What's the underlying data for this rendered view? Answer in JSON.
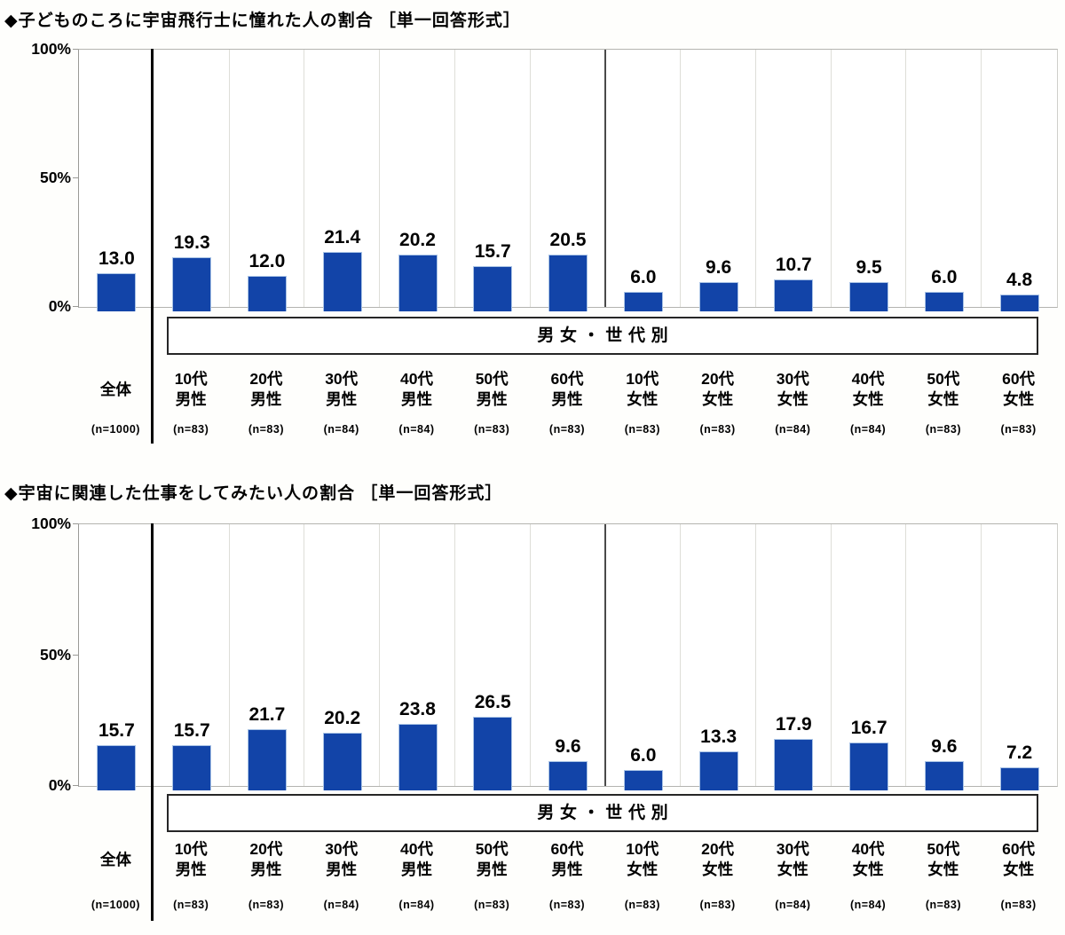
{
  "colors": {
    "bar": "#1244a8",
    "bar_border": "#a9c3e5",
    "divider_black": "#000000",
    "divider_dark": "#4a4a4a"
  },
  "chart_data": [
    {
      "type": "bar",
      "title": "◆子どものころに宇宙飛行士に憧れた人の割合 ［単一回答形式］",
      "group_box_label": "男女・世代別",
      "xlabel": "",
      "ylabel": "",
      "ylim": [
        0,
        100
      ],
      "y_tick_labels": [
        "100%",
        "50%",
        "0%"
      ],
      "grid": "vertical-column-separators",
      "legend": "none",
      "categories": [
        "全体",
        "10代男性",
        "20代男性",
        "30代男性",
        "40代男性",
        "50代男性",
        "60代男性",
        "10代女性",
        "20代女性",
        "30代女性",
        "40代女性",
        "50代女性",
        "60代女性"
      ],
      "category_lines": [
        [
          "全体"
        ],
        [
          "10代",
          "男性"
        ],
        [
          "20代",
          "男性"
        ],
        [
          "30代",
          "男性"
        ],
        [
          "40代",
          "男性"
        ],
        [
          "50代",
          "男性"
        ],
        [
          "60代",
          "男性"
        ],
        [
          "10代",
          "女性"
        ],
        [
          "20代",
          "女性"
        ],
        [
          "30代",
          "女性"
        ],
        [
          "40代",
          "女性"
        ],
        [
          "50代",
          "女性"
        ],
        [
          "60代",
          "女性"
        ]
      ],
      "n_labels": [
        "(n=1000)",
        "(n=83)",
        "(n=83)",
        "(n=84)",
        "(n=84)",
        "(n=83)",
        "(n=83)",
        "(n=83)",
        "(n=83)",
        "(n=84)",
        "(n=84)",
        "(n=83)",
        "(n=83)"
      ],
      "values": [
        13.0,
        19.3,
        12.0,
        21.4,
        20.2,
        15.7,
        20.5,
        6.0,
        9.6,
        10.7,
        9.5,
        6.0,
        4.8
      ],
      "value_labels": [
        "13.0",
        "19.3",
        "12.0",
        "21.4",
        "20.2",
        "15.7",
        "20.5",
        "6.0",
        "9.6",
        "10.7",
        "9.5",
        "6.0",
        "4.8"
      ]
    },
    {
      "type": "bar",
      "title": "◆宇宙に関連した仕事をしてみたい人の割合 ［単一回答形式］",
      "group_box_label": "男女・世代別",
      "xlabel": "",
      "ylabel": "",
      "ylim": [
        0,
        100
      ],
      "y_tick_labels": [
        "100%",
        "50%",
        "0%"
      ],
      "grid": "vertical-column-separators",
      "legend": "none",
      "categories": [
        "全体",
        "10代男性",
        "20代男性",
        "30代男性",
        "40代男性",
        "50代男性",
        "60代男性",
        "10代女性",
        "20代女性",
        "30代女性",
        "40代女性",
        "50代女性",
        "60代女性"
      ],
      "category_lines": [
        [
          "全体"
        ],
        [
          "10代",
          "男性"
        ],
        [
          "20代",
          "男性"
        ],
        [
          "30代",
          "男性"
        ],
        [
          "40代",
          "男性"
        ],
        [
          "50代",
          "男性"
        ],
        [
          "60代",
          "男性"
        ],
        [
          "10代",
          "女性"
        ],
        [
          "20代",
          "女性"
        ],
        [
          "30代",
          "女性"
        ],
        [
          "40代",
          "女性"
        ],
        [
          "50代",
          "女性"
        ],
        [
          "60代",
          "女性"
        ]
      ],
      "n_labels": [
        "(n=1000)",
        "(n=83)",
        "(n=83)",
        "(n=84)",
        "(n=84)",
        "(n=83)",
        "(n=83)",
        "(n=83)",
        "(n=83)",
        "(n=84)",
        "(n=84)",
        "(n=83)",
        "(n=83)"
      ],
      "values": [
        15.7,
        15.7,
        21.7,
        20.2,
        23.8,
        26.5,
        9.6,
        6.0,
        13.3,
        17.9,
        16.7,
        9.6,
        7.2
      ],
      "value_labels": [
        "15.7",
        "15.7",
        "21.7",
        "20.2",
        "23.8",
        "26.5",
        "9.6",
        "6.0",
        "13.3",
        "17.9",
        "16.7",
        "9.6",
        "7.2"
      ]
    }
  ]
}
